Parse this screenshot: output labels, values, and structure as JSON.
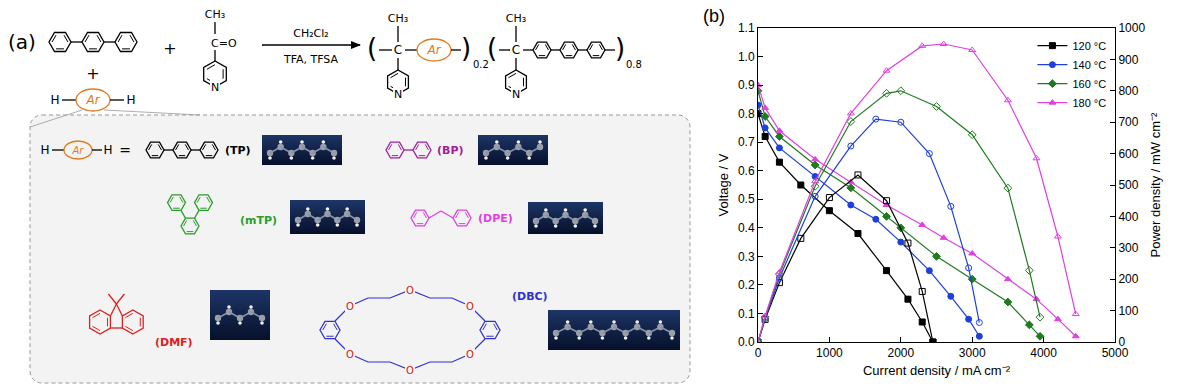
{
  "scheme": {
    "label": "(a)",
    "plus": "+",
    "arene": {
      "h_left": "H",
      "ar": "Ar",
      "h_right": "H"
    },
    "ketone": {
      "methyl": "CH₃",
      "carbonyl": "C=O",
      "nitrogen": "N"
    },
    "conditions": {
      "solvent": "CH₂Cl₂",
      "acids": "TFA, TFSA"
    },
    "product": {
      "open": "(",
      "close": ")",
      "methyl": "CH₃",
      "carbon": "C",
      "ar": "Ar",
      "nitrogen": "N",
      "fraction_1": "0.2",
      "fraction_2": "0.8"
    },
    "monomers": {
      "equals": "=",
      "crown_atom": "O",
      "items": [
        {
          "abbr": "(TP)",
          "color": "#000000"
        },
        {
          "abbr": "(BP)",
          "color": "#a020a0"
        },
        {
          "abbr": "(mTP)",
          "color": "#2a9d2a"
        },
        {
          "abbr": "(DPE)",
          "color": "#e040e0"
        },
        {
          "abbr": "(DMF)",
          "color": "#e02020"
        },
        {
          "abbr": "(DBC)",
          "color": "#3030d0"
        }
      ]
    }
  },
  "chart_data": {
    "type": "line",
    "panel_label": "(b)",
    "x_label": "Current density / mA cm⁻²",
    "y_label": "Voltage / V",
    "y2_label": "Power density / mW cm⁻²",
    "xlim": [
      0,
      5000
    ],
    "xticks": [
      0,
      1000,
      2000,
      3000,
      4000,
      5000
    ],
    "ylim": [
      0,
      1.1
    ],
    "yticks": [
      {
        "value": 0,
        "label": "0.0"
      },
      0.1,
      0.2,
      0.3,
      0.4,
      0.5,
      0.6,
      0.7,
      0.8,
      0.9,
      {
        "value": 1,
        "label": "1.0"
      },
      1.1
    ],
    "y2lim": [
      0,
      1000
    ],
    "y2ticks": [
      0,
      100,
      200,
      300,
      400,
      500,
      600,
      700,
      800,
      900,
      1000
    ],
    "grid": false,
    "legend": "upper right",
    "series": [
      {
        "name": "120 °C",
        "color": "#000000",
        "marker": "square",
        "axis": "y",
        "x": [
          0,
          100,
          300,
          600,
          1000,
          1400,
          1800,
          2100,
          2300,
          2450
        ],
        "values": [
          0.8,
          0.72,
          0.63,
          0.55,
          0.46,
          0.38,
          0.25,
          0.15,
          0.07,
          0
        ]
      },
      {
        "name": "140 °C",
        "color": "#1f3fdc",
        "marker": "circle",
        "axis": "y",
        "x": [
          0,
          100,
          300,
          800,
          1300,
          1650,
          2000,
          2400,
          2700,
          2950,
          3100
        ],
        "values": [
          0.83,
          0.75,
          0.68,
          0.58,
          0.48,
          0.43,
          0.35,
          0.25,
          0.16,
          0.08,
          0.02
        ]
      },
      {
        "name": "160 °C",
        "color": "#1e7b1e",
        "marker": "diamond",
        "axis": "y",
        "x": [
          0,
          100,
          300,
          800,
          1300,
          1800,
          2000,
          2500,
          3000,
          3500,
          3800,
          3950
        ],
        "values": [
          0.88,
          0.79,
          0.72,
          0.62,
          0.54,
          0.44,
          0.4,
          0.3,
          0.22,
          0.14,
          0.06,
          0.02
        ]
      },
      {
        "name": "180 °C",
        "color": "#e040e0",
        "marker": "triangle-up",
        "axis": "y",
        "x": [
          0,
          100,
          300,
          800,
          1300,
          1800,
          2300,
          2600,
          3000,
          3500,
          3900,
          4200,
          4450
        ],
        "values": [
          0.9,
          0.82,
          0.74,
          0.64,
          0.56,
          0.48,
          0.41,
          0.365,
          0.31,
          0.22,
          0.15,
          0.08,
          0.02
        ]
      },
      {
        "name": "120 °C",
        "color": "#000000",
        "marker": "square-open",
        "axis": "y2",
        "x": [
          0,
          100,
          300,
          600,
          1000,
          1400,
          1800,
          2100,
          2300,
          2450
        ],
        "values": [
          0,
          72,
          189,
          330,
          460,
          532,
          450,
          315,
          161,
          0
        ]
      },
      {
        "name": "140 °C",
        "color": "#1f3fdc",
        "marker": "circle-open",
        "axis": "y2",
        "x": [
          0,
          100,
          300,
          800,
          1300,
          1650,
          2000,
          2400,
          2700,
          2950,
          3100
        ],
        "values": [
          0,
          75,
          204,
          464,
          624,
          710,
          700,
          600,
          432,
          236,
          62
        ]
      },
      {
        "name": "160 °C",
        "color": "#1e7b1e",
        "marker": "diamond-open",
        "axis": "y2",
        "x": [
          0,
          100,
          300,
          800,
          1300,
          1800,
          2000,
          2500,
          3000,
          3500,
          3800,
          3950
        ],
        "values": [
          0,
          79,
          216,
          496,
          702,
          792,
          800,
          750,
          660,
          490,
          228,
          79
        ]
      },
      {
        "name": "180 °C",
        "color": "#e040e0",
        "marker": "triangle-up-open",
        "axis": "y2",
        "x": [
          0,
          100,
          300,
          800,
          1300,
          1800,
          2300,
          2600,
          3000,
          3500,
          3900,
          4200,
          4450
        ],
        "values": [
          0,
          82,
          222,
          512,
          728,
          864,
          943,
          949,
          930,
          770,
          585,
          336,
          89
        ]
      }
    ]
  }
}
